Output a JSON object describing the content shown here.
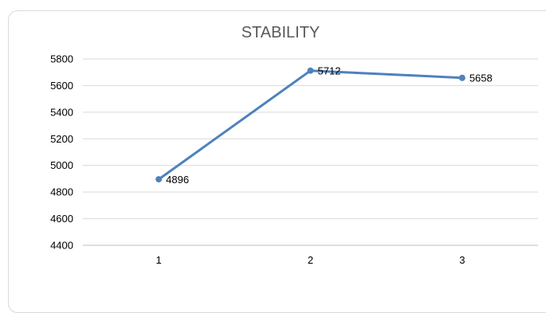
{
  "chart_data": {
    "type": "line",
    "title": "STABILITY",
    "xlabel": "",
    "ylabel": "",
    "categories": [
      "1",
      "2",
      "3"
    ],
    "series": [
      {
        "values": [
          4896,
          5712,
          5658
        ],
        "color": "#4f81bd"
      }
    ],
    "ylim": [
      4400,
      5800
    ],
    "yticks": [
      4400,
      4600,
      4800,
      5000,
      5200,
      5400,
      5600,
      5800
    ],
    "grid": true,
    "legend": "none",
    "data_labels": true
  }
}
